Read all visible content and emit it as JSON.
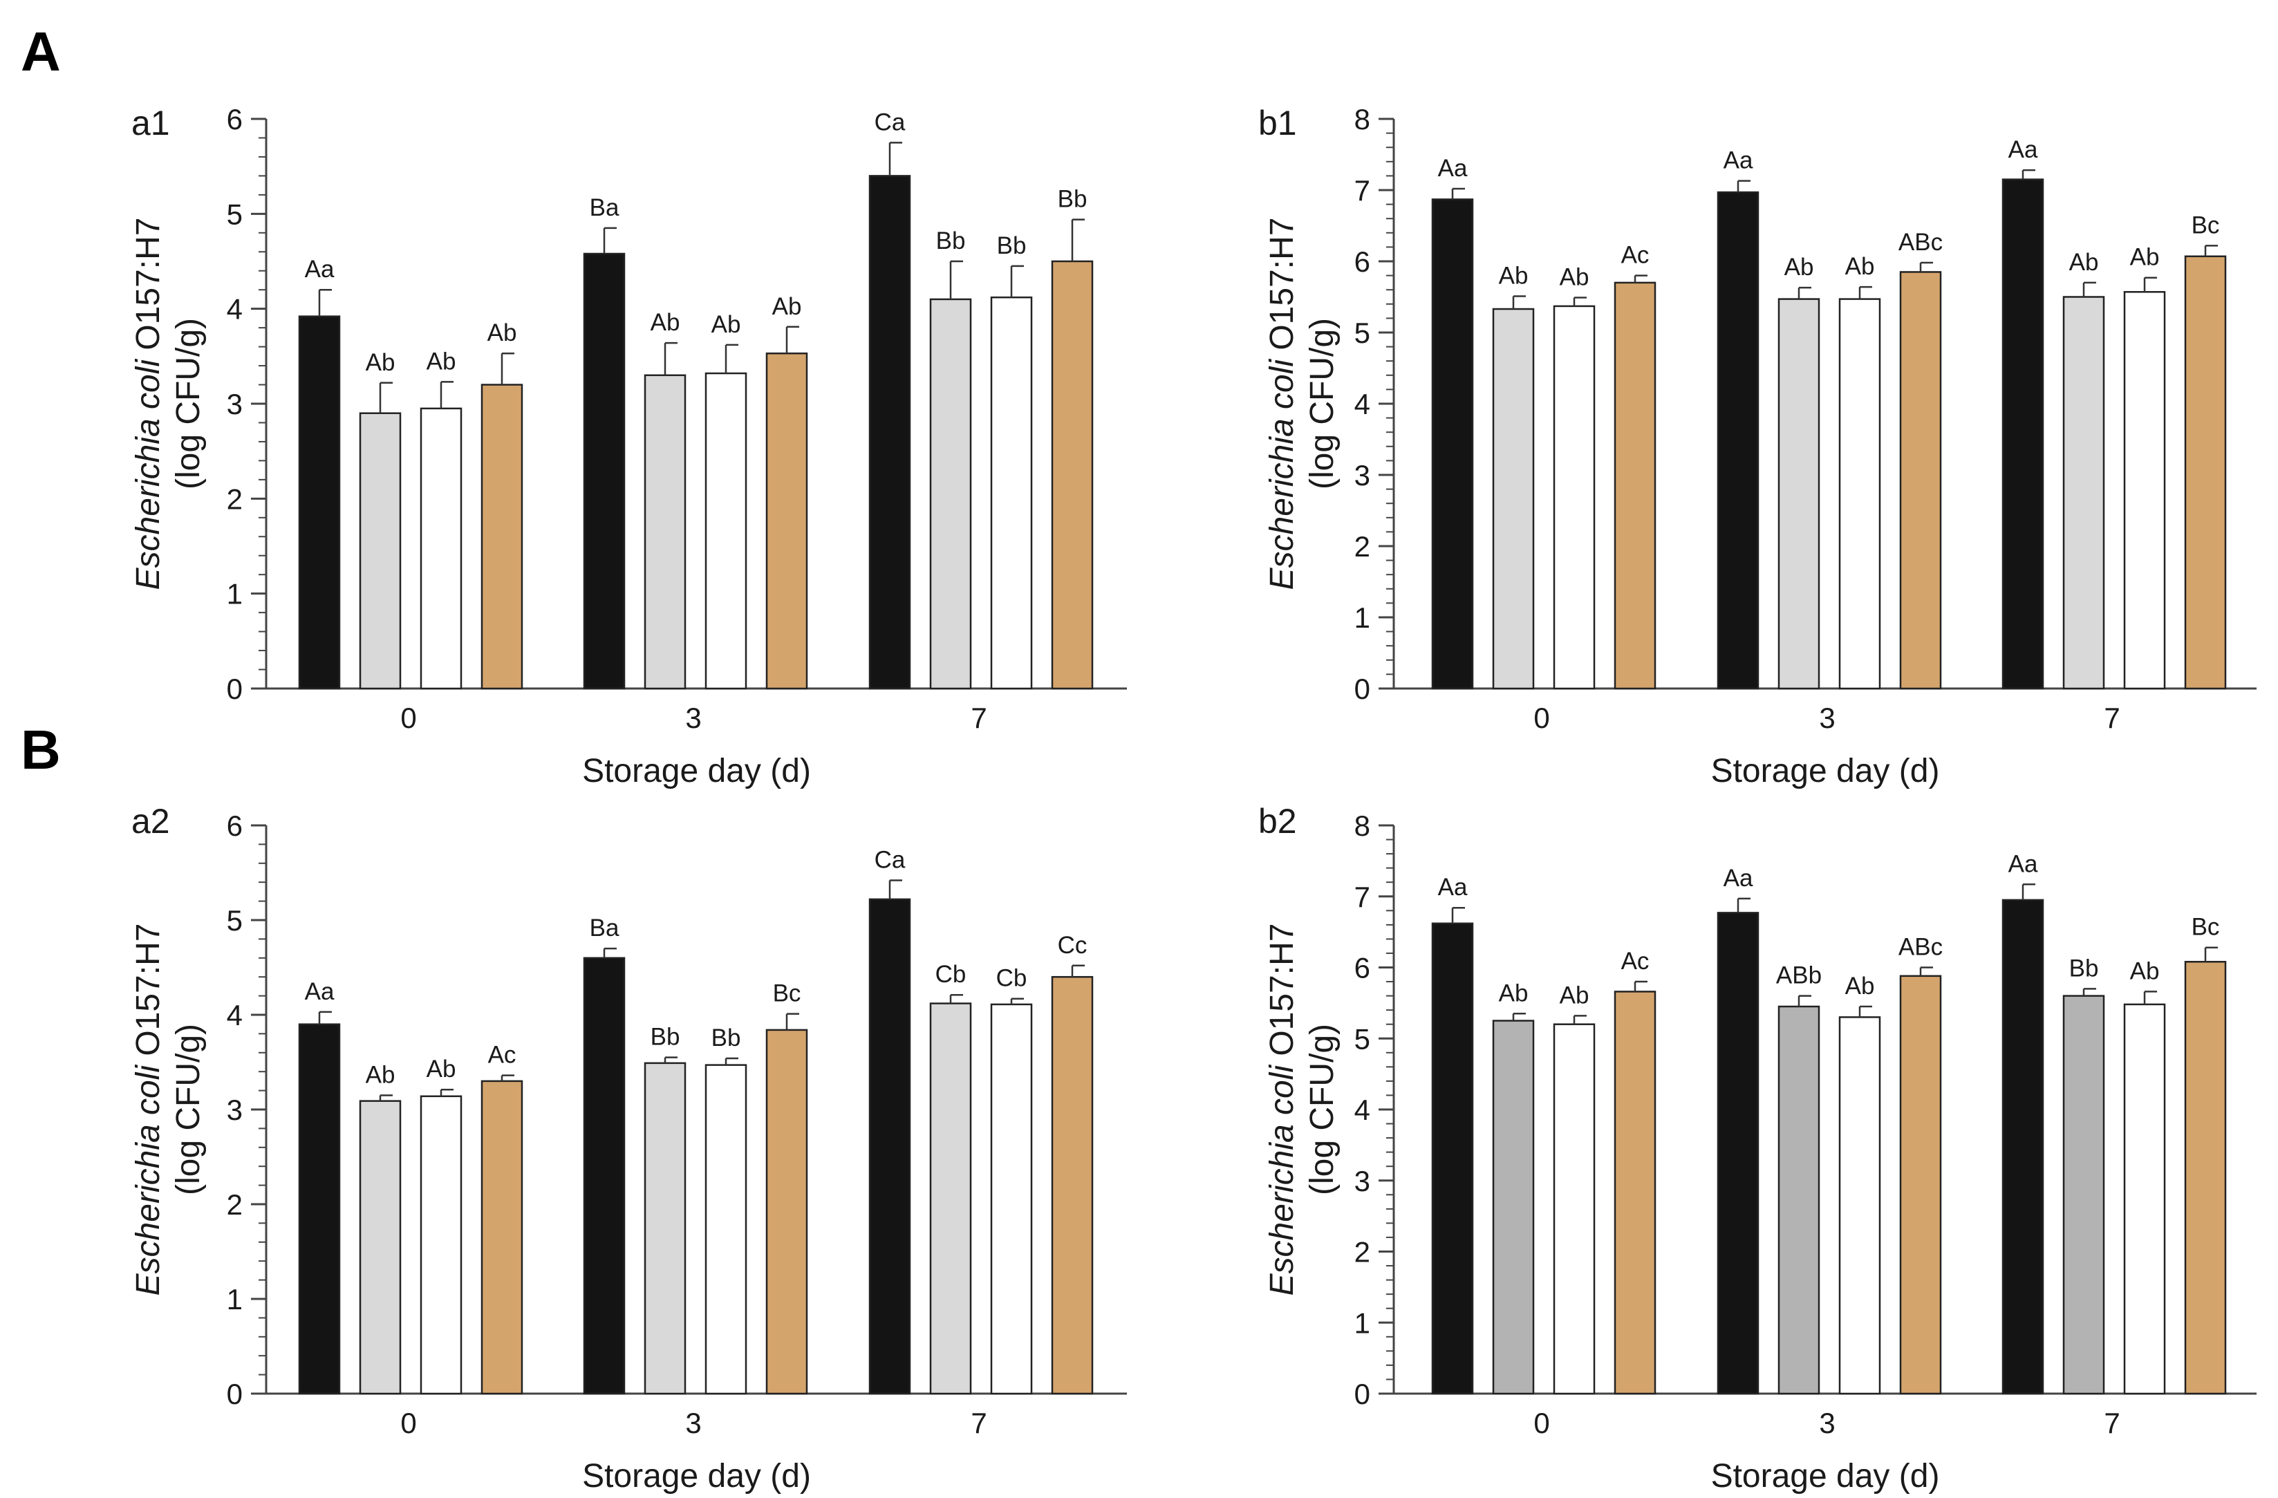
{
  "figure": {
    "section_labels": [
      "A",
      "B"
    ]
  },
  "colors": {
    "black": "#141414",
    "light_gray": "#d9d9d9",
    "mid_gray": "#b3b3b3",
    "white": "#ffffff",
    "tan": "#d4a46d"
  },
  "chart_data": [
    {
      "type": "bar",
      "panel": "a1",
      "xlabel": "Storage day (d)",
      "ylabel_italic": "Escherichia coli",
      "ylabel_rest": " O157:H7",
      "ylabel_line2": "(log CFU/g)",
      "ylim": [
        0,
        6
      ],
      "yticks": [
        0,
        1,
        2,
        3,
        4,
        5,
        6
      ],
      "categories": [
        "0",
        "3",
        "7"
      ],
      "series": [
        {
          "name": "s1",
          "color": "black",
          "values": [
            3.92,
            4.58,
            5.4
          ],
          "errors": [
            0.28,
            0.27,
            0.35
          ],
          "labels": [
            "Aa",
            "Ba",
            "Ca"
          ]
        },
        {
          "name": "s2",
          "color": "light_gray",
          "values": [
            2.9,
            3.3,
            4.1
          ],
          "errors": [
            0.32,
            0.34,
            0.4
          ],
          "labels": [
            "Ab",
            "Ab",
            "Bb"
          ]
        },
        {
          "name": "s3",
          "color": "white",
          "values": [
            2.95,
            3.32,
            4.12
          ],
          "errors": [
            0.28,
            0.3,
            0.33
          ],
          "labels": [
            "Ab",
            "Ab",
            "Bb"
          ]
        },
        {
          "name": "s4",
          "color": "tan",
          "values": [
            3.2,
            3.53,
            4.5
          ],
          "errors": [
            0.33,
            0.28,
            0.44
          ],
          "labels": [
            "Ab",
            "Ab",
            "Bb"
          ]
        }
      ]
    },
    {
      "type": "bar",
      "panel": "b1",
      "xlabel": "Storage day (d)",
      "ylabel_italic": "Escherichia coli",
      "ylabel_rest": " O157:H7",
      "ylabel_line2": "(log CFU/g)",
      "ylim": [
        0,
        8
      ],
      "yticks": [
        0,
        1,
        2,
        3,
        4,
        5,
        6,
        7,
        8
      ],
      "categories": [
        "0",
        "3",
        "7"
      ],
      "series": [
        {
          "name": "s1",
          "color": "black",
          "values": [
            6.87,
            6.97,
            7.15
          ],
          "errors": [
            0.15,
            0.16,
            0.13
          ],
          "labels": [
            "Aa",
            "Aa",
            "Aa"
          ]
        },
        {
          "name": "s2",
          "color": "light_gray",
          "values": [
            5.33,
            5.47,
            5.5
          ],
          "errors": [
            0.18,
            0.16,
            0.2
          ],
          "labels": [
            "Ab",
            "Ab",
            "Ab"
          ]
        },
        {
          "name": "s3",
          "color": "white",
          "values": [
            5.37,
            5.47,
            5.57
          ],
          "errors": [
            0.12,
            0.17,
            0.2
          ],
          "labels": [
            "Ab",
            "Ab",
            "Ab"
          ]
        },
        {
          "name": "s4",
          "color": "tan",
          "values": [
            5.7,
            5.85,
            6.07
          ],
          "errors": [
            0.1,
            0.13,
            0.15
          ],
          "labels": [
            "Ac",
            "ABc",
            "Bc"
          ]
        }
      ]
    },
    {
      "type": "bar",
      "panel": "a2",
      "xlabel": "Storage day (d)",
      "ylabel_italic": "Escherichia coli",
      "ylabel_rest": " O157:H7",
      "ylabel_line2": "(log CFU/g)",
      "ylim": [
        0,
        6
      ],
      "yticks": [
        0,
        1,
        2,
        3,
        4,
        5,
        6
      ],
      "categories": [
        "0",
        "3",
        "7"
      ],
      "series": [
        {
          "name": "s1",
          "color": "black",
          "values": [
            3.9,
            4.6,
            5.22
          ],
          "errors": [
            0.13,
            0.1,
            0.2
          ],
          "labels": [
            "Aa",
            "Ba",
            "Ca"
          ]
        },
        {
          "name": "s2",
          "color": "light_gray",
          "values": [
            3.09,
            3.49,
            4.12
          ],
          "errors": [
            0.06,
            0.06,
            0.09
          ],
          "labels": [
            "Ab",
            "Bb",
            "Cb"
          ]
        },
        {
          "name": "s3",
          "color": "white",
          "values": [
            3.14,
            3.47,
            4.11
          ],
          "errors": [
            0.07,
            0.07,
            0.06
          ],
          "labels": [
            "Ab",
            "Bb",
            "Cb"
          ]
        },
        {
          "name": "s4",
          "color": "tan",
          "values": [
            3.3,
            3.84,
            4.4
          ],
          "errors": [
            0.06,
            0.17,
            0.12
          ],
          "labels": [
            "Ac",
            "Bc",
            "Cc"
          ]
        }
      ]
    },
    {
      "type": "bar",
      "panel": "b2",
      "xlabel": "Storage day (d)",
      "ylabel_italic": "Escherichia coli",
      "ylabel_rest": " O157:H7",
      "ylabel_line2": "(log CFU/g)",
      "ylim": [
        0,
        8
      ],
      "yticks": [
        0,
        1,
        2,
        3,
        4,
        5,
        6,
        7,
        8
      ],
      "categories": [
        "0",
        "3",
        "7"
      ],
      "series": [
        {
          "name": "s1",
          "color": "black",
          "values": [
            6.62,
            6.77,
            6.95
          ],
          "errors": [
            0.22,
            0.2,
            0.22
          ],
          "labels": [
            "Aa",
            "Aa",
            "Aa"
          ]
        },
        {
          "name": "s2",
          "color": "mid_gray",
          "values": [
            5.25,
            5.45,
            5.6
          ],
          "errors": [
            0.1,
            0.15,
            0.1
          ],
          "labels": [
            "Ab",
            "ABb",
            "Bb"
          ]
        },
        {
          "name": "s3",
          "color": "white",
          "values": [
            5.2,
            5.3,
            5.48
          ],
          "errors": [
            0.12,
            0.15,
            0.18
          ],
          "labels": [
            "Ab",
            "Ab",
            "Ab"
          ]
        },
        {
          "name": "s4",
          "color": "tan",
          "values": [
            5.66,
            5.88,
            6.08
          ],
          "errors": [
            0.14,
            0.12,
            0.2
          ],
          "labels": [
            "Ac",
            "ABc",
            "Bc"
          ]
        }
      ]
    }
  ]
}
